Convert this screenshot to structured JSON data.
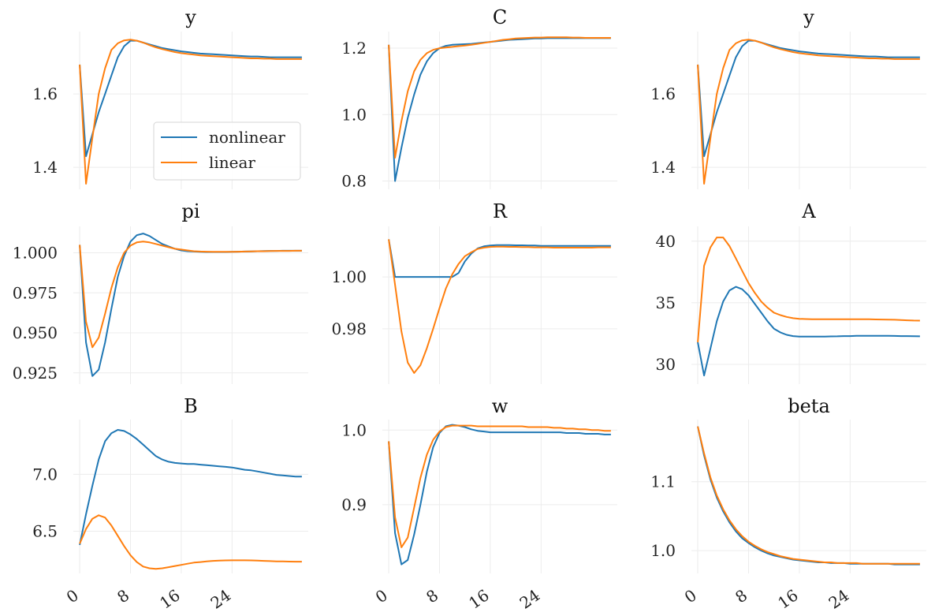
{
  "colors": {
    "nonlinear": "#1f77b4",
    "linear": "#ff7f0e",
    "grid": "#ececec"
  },
  "legend": {
    "placement": "lower-right (first panel)",
    "entries": [
      "nonlinear",
      "linear"
    ]
  },
  "chart_data": [
    {
      "type": "line",
      "title": "y",
      "xlim": [
        -1,
        36
      ],
      "ylim": [
        1.34,
        1.77
      ],
      "x_ticks": [
        0,
        8,
        16,
        24
      ],
      "y_ticks": [
        1.4,
        1.6
      ],
      "y_tick_labels": [
        "1.4",
        "1.6"
      ],
      "show_x_labels": false,
      "series": [
        {
          "name": "nonlinear",
          "values": [
            1.68,
            1.43,
            1.49,
            1.55,
            1.6,
            1.65,
            1.7,
            1.73,
            1.745,
            1.745,
            1.74,
            1.735,
            1.73,
            1.725,
            1.722,
            1.719,
            1.716,
            1.714,
            1.712,
            1.71,
            1.709,
            1.708,
            1.707,
            1.706,
            1.705,
            1.704,
            1.703,
            1.702,
            1.702,
            1.701,
            1.7,
            1.7,
            1.7,
            1.7,
            1.7,
            1.7
          ]
        },
        {
          "name": "linear",
          "values": [
            1.68,
            1.355,
            1.48,
            1.6,
            1.67,
            1.72,
            1.738,
            1.746,
            1.748,
            1.745,
            1.74,
            1.733,
            1.727,
            1.722,
            1.718,
            1.714,
            1.711,
            1.709,
            1.707,
            1.705,
            1.704,
            1.703,
            1.702,
            1.701,
            1.7,
            1.699,
            1.698,
            1.697,
            1.697,
            1.696,
            1.696,
            1.695,
            1.695,
            1.695,
            1.695,
            1.695
          ]
        }
      ]
    },
    {
      "type": "line",
      "title": "C",
      "xlim": [
        -1,
        36
      ],
      "ylim": [
        0.775,
        1.25
      ],
      "x_ticks": [
        0,
        8,
        16,
        24
      ],
      "y_ticks": [
        0.8,
        1.0,
        1.2
      ],
      "y_tick_labels": [
        "0.8",
        "1.0",
        "1.2"
      ],
      "show_x_labels": false,
      "series": [
        {
          "name": "nonlinear",
          "values": [
            1.21,
            0.8,
            0.9,
            0.99,
            1.06,
            1.12,
            1.16,
            1.185,
            1.2,
            1.207,
            1.21,
            1.211,
            1.212,
            1.213,
            1.215,
            1.217,
            1.219,
            1.221,
            1.223,
            1.225,
            1.226,
            1.227,
            1.228,
            1.229,
            1.229,
            1.23,
            1.23,
            1.23,
            1.23,
            1.23,
            1.23,
            1.23,
            1.23,
            1.23,
            1.23,
            1.23
          ]
        },
        {
          "name": "linear",
          "values": [
            1.21,
            0.87,
            0.98,
            1.07,
            1.13,
            1.165,
            1.185,
            1.195,
            1.2,
            1.202,
            1.204,
            1.206,
            1.208,
            1.21,
            1.213,
            1.216,
            1.219,
            1.222,
            1.225,
            1.227,
            1.229,
            1.23,
            1.231,
            1.232,
            1.232,
            1.233,
            1.233,
            1.233,
            1.233,
            1.232,
            1.232,
            1.231,
            1.231,
            1.231,
            1.231,
            1.231
          ]
        }
      ]
    },
    {
      "type": "line",
      "title": "y",
      "xlim": [
        -1,
        36
      ],
      "ylim": [
        1.34,
        1.77
      ],
      "x_ticks": [
        0,
        8,
        16,
        24
      ],
      "y_ticks": [
        1.4,
        1.6
      ],
      "y_tick_labels": [
        "1.4",
        "1.6"
      ],
      "show_x_labels": false,
      "series": [
        {
          "name": "nonlinear",
          "values": [
            1.68,
            1.43,
            1.49,
            1.55,
            1.6,
            1.65,
            1.7,
            1.73,
            1.745,
            1.745,
            1.74,
            1.735,
            1.73,
            1.725,
            1.722,
            1.719,
            1.716,
            1.714,
            1.712,
            1.71,
            1.709,
            1.708,
            1.707,
            1.706,
            1.705,
            1.704,
            1.703,
            1.702,
            1.702,
            1.701,
            1.7,
            1.7,
            1.7,
            1.7,
            1.7,
            1.7
          ]
        },
        {
          "name": "linear",
          "values": [
            1.68,
            1.355,
            1.48,
            1.6,
            1.67,
            1.72,
            1.738,
            1.746,
            1.748,
            1.745,
            1.74,
            1.733,
            1.727,
            1.722,
            1.718,
            1.714,
            1.711,
            1.709,
            1.707,
            1.705,
            1.704,
            1.703,
            1.702,
            1.701,
            1.7,
            1.699,
            1.698,
            1.697,
            1.697,
            1.696,
            1.696,
            1.695,
            1.695,
            1.695,
            1.695,
            1.695
          ]
        }
      ]
    },
    {
      "type": "line",
      "title": "pi",
      "xlim": [
        -1,
        36
      ],
      "ylim": [
        0.918,
        1.0165
      ],
      "x_ticks": [
        0,
        8,
        16,
        24
      ],
      "y_ticks": [
        0.925,
        0.95,
        0.975,
        1.0
      ],
      "y_tick_labels": [
        "0.925",
        "0.950",
        "0.975",
        "1.000"
      ],
      "show_x_labels": false,
      "series": [
        {
          "name": "nonlinear",
          "values": [
            1.005,
            0.944,
            0.923,
            0.927,
            0.944,
            0.965,
            0.985,
            0.998,
            1.007,
            1.011,
            1.012,
            1.0105,
            1.008,
            1.0055,
            1.004,
            1.0025,
            1.0015,
            1.001,
            1.0008,
            1.0006,
            1.0005,
            1.0005,
            1.0005,
            1.0005,
            1.0006,
            1.0007,
            1.0008,
            1.0009,
            1.001,
            1.0011,
            1.0012,
            1.0012,
            1.0013,
            1.0013,
            1.0013,
            1.0013
          ]
        },
        {
          "name": "linear",
          "values": [
            1.005,
            0.957,
            0.941,
            0.947,
            0.962,
            0.978,
            0.991,
            1.0,
            1.0045,
            1.0065,
            1.007,
            1.0065,
            1.0055,
            1.0045,
            1.0035,
            1.0025,
            1.002,
            1.0015,
            1.001,
            1.0008,
            1.0007,
            1.0006,
            1.0006,
            1.0006,
            1.0006,
            1.0007,
            1.0008,
            1.0009,
            1.001,
            1.001,
            1.0011,
            1.0012,
            1.0012,
            1.0012,
            1.0013,
            1.0013
          ]
        }
      ]
    },
    {
      "type": "line",
      "title": "R",
      "xlim": [
        -1,
        36
      ],
      "ylim": [
        0.9587,
        1.0195
      ],
      "x_ticks": [
        0,
        8,
        16,
        24
      ],
      "y_ticks": [
        0.98,
        1.0
      ],
      "y_tick_labels": [
        "0.98",
        "1.00"
      ],
      "show_x_labels": false,
      "series": [
        {
          "name": "nonlinear",
          "values": [
            1.0145,
            1.0,
            1.0,
            1.0,
            1.0,
            1.0,
            1.0,
            1.0,
            1.0,
            1.0,
            1.0,
            1.0015,
            1.006,
            1.009,
            1.011,
            1.0118,
            1.0121,
            1.0123,
            1.0123,
            1.0123,
            1.0122,
            1.0122,
            1.0121,
            1.0121,
            1.012,
            1.012,
            1.012,
            1.012,
            1.012,
            1.012,
            1.012,
            1.012,
            1.012,
            1.012,
            1.012,
            1.012
          ]
        },
        {
          "name": "linear",
          "values": [
            1.0145,
            0.997,
            0.979,
            0.967,
            0.963,
            0.966,
            0.9725,
            0.98,
            0.988,
            0.9955,
            1.001,
            1.005,
            1.008,
            1.0095,
            1.0108,
            1.0113,
            1.0116,
            1.0117,
            1.0117,
            1.0116,
            1.0116,
            1.0115,
            1.0115,
            1.0114,
            1.0114,
            1.0114,
            1.0113,
            1.0113,
            1.0113,
            1.0113,
            1.0113,
            1.0113,
            1.0113,
            1.0114,
            1.0114,
            1.0114
          ]
        }
      ]
    },
    {
      "type": "line",
      "title": "A",
      "xlim": [
        -1,
        36
      ],
      "ylim": [
        28.4,
        41.2
      ],
      "x_ticks": [
        0,
        8,
        16,
        24
      ],
      "y_ticks": [
        30,
        35,
        40
      ],
      "y_tick_labels": [
        "30",
        "35",
        "40"
      ],
      "show_x_labels": false,
      "series": [
        {
          "name": "nonlinear",
          "values": [
            31.8,
            29.1,
            31.3,
            33.5,
            35.1,
            36.0,
            36.3,
            36.1,
            35.6,
            34.9,
            34.2,
            33.5,
            32.9,
            32.6,
            32.4,
            32.3,
            32.25,
            32.25,
            32.25,
            32.25,
            32.25,
            32.27,
            32.28,
            32.3,
            32.3,
            32.32,
            32.32,
            32.32,
            32.32,
            32.32,
            32.32,
            32.31,
            32.3,
            32.3,
            32.29,
            32.28
          ]
        },
        {
          "name": "linear",
          "values": [
            31.8,
            38.0,
            39.5,
            40.3,
            40.3,
            39.6,
            38.6,
            37.6,
            36.6,
            35.8,
            35.1,
            34.6,
            34.2,
            34.0,
            33.85,
            33.75,
            33.7,
            33.68,
            33.67,
            33.66,
            33.66,
            33.66,
            33.66,
            33.66,
            33.66,
            33.66,
            33.66,
            33.66,
            33.65,
            33.64,
            33.63,
            33.62,
            33.6,
            33.58,
            33.56,
            33.55
          ]
        }
      ]
    },
    {
      "type": "line",
      "title": "B",
      "xlim": [
        -1,
        36
      ],
      "ylim": [
        6.13,
        7.48
      ],
      "x_ticks": [
        0,
        8,
        16,
        24
      ],
      "y_ticks": [
        6.5,
        7.0
      ],
      "y_tick_labels": [
        "6.5",
        "7.0"
      ],
      "show_x_labels": true,
      "x_tick_labels": [
        "0",
        "8",
        "16",
        "24"
      ],
      "series": [
        {
          "name": "nonlinear",
          "values": [
            6.38,
            6.65,
            6.9,
            7.13,
            7.29,
            7.36,
            7.39,
            7.38,
            7.35,
            7.31,
            7.26,
            7.21,
            7.16,
            7.13,
            7.11,
            7.1,
            7.095,
            7.09,
            7.09,
            7.085,
            7.08,
            7.075,
            7.07,
            7.065,
            7.06,
            7.05,
            7.04,
            7.035,
            7.025,
            7.015,
            7.005,
            6.995,
            6.99,
            6.985,
            6.98,
            6.98
          ]
        },
        {
          "name": "linear",
          "values": [
            6.39,
            6.52,
            6.61,
            6.64,
            6.62,
            6.55,
            6.46,
            6.37,
            6.29,
            6.23,
            6.19,
            6.175,
            6.17,
            6.175,
            6.185,
            6.195,
            6.205,
            6.215,
            6.225,
            6.23,
            6.235,
            6.24,
            6.242,
            6.244,
            6.245,
            6.245,
            6.245,
            6.244,
            6.242,
            6.24,
            6.238,
            6.236,
            6.235,
            6.234,
            6.233,
            6.233
          ]
        }
      ]
    },
    {
      "type": "line",
      "title": "w",
      "xlim": [
        -1,
        36
      ],
      "ylim": [
        0.808,
        1.014
      ],
      "x_ticks": [
        0,
        8,
        16,
        24
      ],
      "y_ticks": [
        0.9,
        1.0
      ],
      "y_tick_labels": [
        "0.9",
        "1.0"
      ],
      "show_x_labels": true,
      "x_tick_labels": [
        "0",
        "8",
        "16",
        "24"
      ],
      "series": [
        {
          "name": "nonlinear",
          "values": [
            0.985,
            0.862,
            0.82,
            0.826,
            0.86,
            0.9,
            0.944,
            0.977,
            0.996,
            1.005,
            1.007,
            1.006,
            1.004,
            1.001,
            0.999,
            0.998,
            0.997,
            0.997,
            0.997,
            0.997,
            0.997,
            0.997,
            0.997,
            0.997,
            0.997,
            0.997,
            0.997,
            0.997,
            0.996,
            0.996,
            0.996,
            0.995,
            0.995,
            0.995,
            0.994,
            0.994
          ]
        },
        {
          "name": "linear",
          "values": [
            0.985,
            0.883,
            0.843,
            0.856,
            0.896,
            0.936,
            0.967,
            0.987,
            0.998,
            1.004,
            1.006,
            1.006,
            1.006,
            1.006,
            1.005,
            1.005,
            1.005,
            1.005,
            1.005,
            1.005,
            1.005,
            1.005,
            1.004,
            1.004,
            1.004,
            1.004,
            1.003,
            1.003,
            1.002,
            1.002,
            1.001,
            1.001,
            1.0,
            1.0,
            0.999,
            0.999
          ]
        }
      ]
    },
    {
      "type": "line",
      "title": "beta",
      "xlim": [
        -1,
        36
      ],
      "ylim": [
        0.967,
        1.19
      ],
      "x_ticks": [
        0,
        8,
        16,
        24
      ],
      "y_ticks": [
        1.0,
        1.1
      ],
      "y_tick_labels": [
        "1.0",
        "1.1"
      ],
      "show_x_labels": true,
      "x_tick_labels": [
        "0",
        "8",
        "16",
        "24"
      ],
      "series": [
        {
          "name": "nonlinear",
          "values": [
            1.18,
            1.138,
            1.103,
            1.077,
            1.057,
            1.041,
            1.028,
            1.018,
            1.011,
            1.005,
            1.0,
            0.996,
            0.993,
            0.991,
            0.989,
            0.987,
            0.986,
            0.985,
            0.984,
            0.983,
            0.983,
            0.982,
            0.982,
            0.982,
            0.981,
            0.981,
            0.981,
            0.981,
            0.981,
            0.981,
            0.981,
            0.98,
            0.98,
            0.98,
            0.98,
            0.98
          ]
        },
        {
          "name": "linear",
          "values": [
            1.18,
            1.141,
            1.106,
            1.08,
            1.06,
            1.044,
            1.031,
            1.021,
            1.013,
            1.007,
            1.002,
            0.998,
            0.995,
            0.992,
            0.99,
            0.988,
            0.987,
            0.986,
            0.985,
            0.984,
            0.983,
            0.983,
            0.982,
            0.982,
            0.982,
            0.982,
            0.981,
            0.981,
            0.981,
            0.981,
            0.981,
            0.981,
            0.981,
            0.981,
            0.981,
            0.981
          ]
        }
      ]
    }
  ]
}
